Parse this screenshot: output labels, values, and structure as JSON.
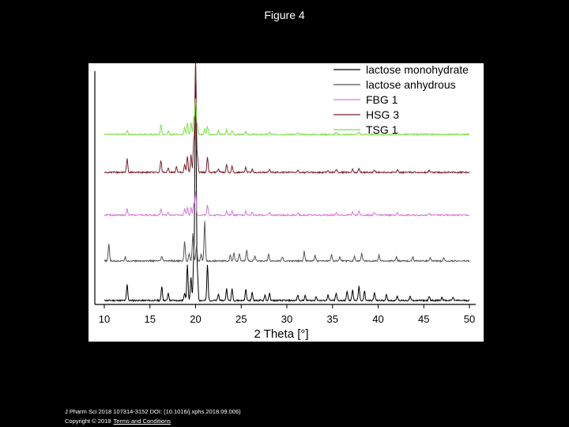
{
  "page": {
    "title": "Figure 4"
  },
  "footer": {
    "citation": "J Pharm Sci 2018 107314-3152 DOI: (10.1016/j.xphs.2018.09.006)",
    "copyright": "Copyright © 2018",
    "terms_link": "Terms and Conditions"
  },
  "colors": {
    "background": "#000000",
    "plot_background": "#ffffff",
    "lactose_monohydrate": "#000000",
    "lactose_anhydrous": "#555555",
    "fbg1": "#d47ad9",
    "hsg3": "#7a1f2a",
    "tsg1": "#7ee04a"
  },
  "chart_data": {
    "type": "line",
    "title": "",
    "xlabel": "2 Theta [°]",
    "ylabel": "",
    "xlim": [
      10,
      50
    ],
    "xticks": [
      10,
      15,
      20,
      25,
      30,
      35,
      40,
      45,
      50
    ],
    "grid": false,
    "legend_position": "top-right",
    "series": [
      {
        "name": "lactose monohydrate",
        "offset": 0,
        "peaks": [
          [
            12.5,
            20
          ],
          [
            16.3,
            18
          ],
          [
            17.0,
            9
          ],
          [
            18.8,
            10
          ],
          [
            19.1,
            45
          ],
          [
            19.5,
            30
          ],
          [
            19.8,
            55
          ],
          [
            20.0,
            300
          ],
          [
            20.2,
            35
          ],
          [
            21.3,
            45
          ],
          [
            22.5,
            8
          ],
          [
            23.4,
            15
          ],
          [
            24.0,
            15
          ],
          [
            25.5,
            14
          ],
          [
            26.2,
            10
          ],
          [
            27.6,
            7
          ],
          [
            28.1,
            9
          ],
          [
            31.2,
            7
          ],
          [
            32.0,
            6
          ],
          [
            33.2,
            5
          ],
          [
            34.5,
            7
          ],
          [
            35.4,
            9
          ],
          [
            36.6,
            12
          ],
          [
            37.2,
            14
          ],
          [
            37.9,
            18
          ],
          [
            38.5,
            12
          ],
          [
            39.6,
            10
          ],
          [
            40.9,
            7
          ],
          [
            42.1,
            6
          ],
          [
            43.5,
            5
          ],
          [
            45.6,
            5
          ],
          [
            47.0,
            4
          ],
          [
            48.2,
            4
          ]
        ]
      },
      {
        "name": "lactose anhydrous",
        "offset": 50,
        "peaks": [
          [
            10.5,
            22
          ],
          [
            12.3,
            5
          ],
          [
            16.3,
            6
          ],
          [
            18.8,
            25
          ],
          [
            19.3,
            10
          ],
          [
            19.7,
            35
          ],
          [
            20.1,
            20
          ],
          [
            20.6,
            8
          ],
          [
            21.0,
            50
          ],
          [
            23.8,
            7
          ],
          [
            24.2,
            10
          ],
          [
            24.8,
            9
          ],
          [
            25.6,
            14
          ],
          [
            26.5,
            6
          ],
          [
            28.0,
            9
          ],
          [
            29.5,
            5
          ],
          [
            31.9,
            12
          ],
          [
            33.1,
            7
          ],
          [
            34.9,
            8
          ],
          [
            35.8,
            5
          ],
          [
            37.4,
            6
          ],
          [
            38.2,
            9
          ],
          [
            40.1,
            7
          ],
          [
            42.0,
            5
          ],
          [
            43.8,
            5
          ],
          [
            45.7,
            5
          ],
          [
            47.2,
            4
          ]
        ]
      },
      {
        "name": "FBG 1",
        "offset": 108,
        "peaks": [
          [
            12.5,
            8
          ],
          [
            16.2,
            8
          ],
          [
            17.0,
            4
          ],
          [
            18.8,
            8
          ],
          [
            19.1,
            10
          ],
          [
            19.5,
            10
          ],
          [
            19.8,
            15
          ],
          [
            20.0,
            30
          ],
          [
            21.3,
            12
          ],
          [
            23.4,
            5
          ],
          [
            24.0,
            5
          ],
          [
            25.5,
            5
          ],
          [
            26.2,
            4
          ],
          [
            28.1,
            3
          ],
          [
            31.2,
            3
          ],
          [
            35.4,
            3
          ],
          [
            37.2,
            4
          ],
          [
            37.9,
            5
          ],
          [
            39.6,
            3
          ],
          [
            42.1,
            3
          ],
          [
            45.6,
            2
          ]
        ]
      },
      {
        "name": "HSG 3",
        "offset": 162,
        "peaks": [
          [
            12.5,
            17
          ],
          [
            16.2,
            15
          ],
          [
            17.0,
            5
          ],
          [
            17.9,
            7
          ],
          [
            18.8,
            10
          ],
          [
            19.1,
            20
          ],
          [
            19.5,
            22
          ],
          [
            19.8,
            40
          ],
          [
            20.0,
            140
          ],
          [
            20.2,
            20
          ],
          [
            21.3,
            20
          ],
          [
            22.5,
            4
          ],
          [
            23.4,
            10
          ],
          [
            24.0,
            8
          ],
          [
            25.5,
            6
          ],
          [
            26.2,
            4
          ],
          [
            28.1,
            4
          ],
          [
            31.2,
            3
          ],
          [
            34.5,
            3
          ],
          [
            35.4,
            4
          ],
          [
            37.2,
            4
          ],
          [
            37.9,
            5
          ],
          [
            39.6,
            3
          ],
          [
            42.1,
            3
          ],
          [
            45.6,
            2
          ]
        ]
      },
      {
        "name": "TSG 1",
        "offset": 210,
        "peaks": [
          [
            12.5,
            5
          ],
          [
            16.2,
            12
          ],
          [
            17.0,
            5
          ],
          [
            18.8,
            9
          ],
          [
            19.1,
            14
          ],
          [
            19.5,
            15
          ],
          [
            19.8,
            22
          ],
          [
            20.0,
            45
          ],
          [
            20.2,
            12
          ],
          [
            21.0,
            8
          ],
          [
            21.3,
            10
          ],
          [
            22.5,
            5
          ],
          [
            23.4,
            6
          ],
          [
            24.0,
            5
          ],
          [
            25.5,
            3
          ],
          [
            28.1,
            3
          ],
          [
            31.2,
            2
          ],
          [
            35.4,
            2
          ],
          [
            37.9,
            3
          ],
          [
            42.1,
            2
          ]
        ]
      }
    ]
  }
}
